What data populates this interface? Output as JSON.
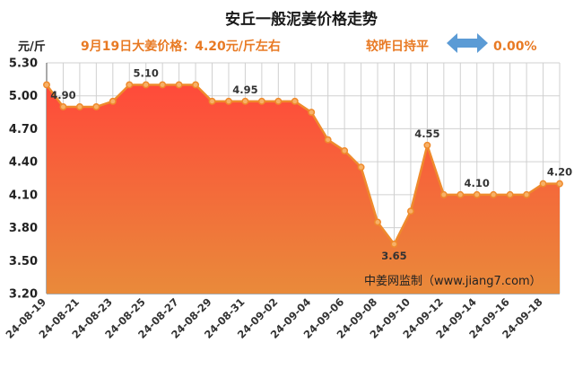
{
  "chart_data": {
    "type": "area",
    "title": "安丘一般泥姜价格走势",
    "subtitle": "9月19日大姜价格：4.20元/斤左右",
    "unit_label": "元/斤",
    "change_text": "较昨日持平",
    "change_value": "0.00%",
    "watermark": "中姜网监制（www.jiang7.com）",
    "ylim": [
      3.2,
      5.3
    ],
    "yticks": [
      "3.20",
      "3.50",
      "3.80",
      "4.10",
      "4.40",
      "4.70",
      "5.00",
      "5.30"
    ],
    "grid": true,
    "x": [
      "24-08-19",
      "24-08-20",
      "24-08-21",
      "24-08-22",
      "24-08-23",
      "24-08-24",
      "24-08-25",
      "24-08-26",
      "24-08-27",
      "24-08-28",
      "24-08-29",
      "24-08-30",
      "24-08-31",
      "24-09-01",
      "24-09-02",
      "24-09-03",
      "24-09-04",
      "24-09-05",
      "24-09-06",
      "24-09-07",
      "24-09-08",
      "24-09-09",
      "24-09-10",
      "24-09-11",
      "24-09-12",
      "24-09-13",
      "24-09-14",
      "24-09-15",
      "24-09-16",
      "24-09-17",
      "24-09-18",
      "24-09-19"
    ],
    "xtick_labels": [
      "24-08-19",
      "24-08-21",
      "24-08-23",
      "24-08-25",
      "24-08-27",
      "24-08-29",
      "24-08-31",
      "24-09-02",
      "24-09-04",
      "24-09-06",
      "24-09-08",
      "24-09-10",
      "24-09-12",
      "24-09-14",
      "24-09-16",
      "24-09-18"
    ],
    "values": [
      5.1,
      4.9,
      4.9,
      4.9,
      4.95,
      5.1,
      5.1,
      5.1,
      5.1,
      5.1,
      4.95,
      4.95,
      4.95,
      4.95,
      4.95,
      4.95,
      4.85,
      4.6,
      4.5,
      4.35,
      3.85,
      3.65,
      3.95,
      4.55,
      4.1,
      4.1,
      4.1,
      4.1,
      4.1,
      4.1,
      4.2,
      4.2
    ],
    "data_labels": [
      {
        "index": 1,
        "text": "4.90"
      },
      {
        "index": 6,
        "text": "5.10"
      },
      {
        "index": 12,
        "text": "4.95"
      },
      {
        "index": 21,
        "text": "3.65"
      },
      {
        "index": 23,
        "text": "4.55"
      },
      {
        "index": 26,
        "text": "4.10"
      },
      {
        "index": 31,
        "text": "4.20"
      }
    ],
    "colors": {
      "line": "#ef8a2c",
      "marker_fill": "#f7b167",
      "fill_top": "#ff4a3a",
      "fill_bottom": "#e98a3a",
      "arrow": "#5b9bd5",
      "grid": "#d0d0d0"
    }
  }
}
